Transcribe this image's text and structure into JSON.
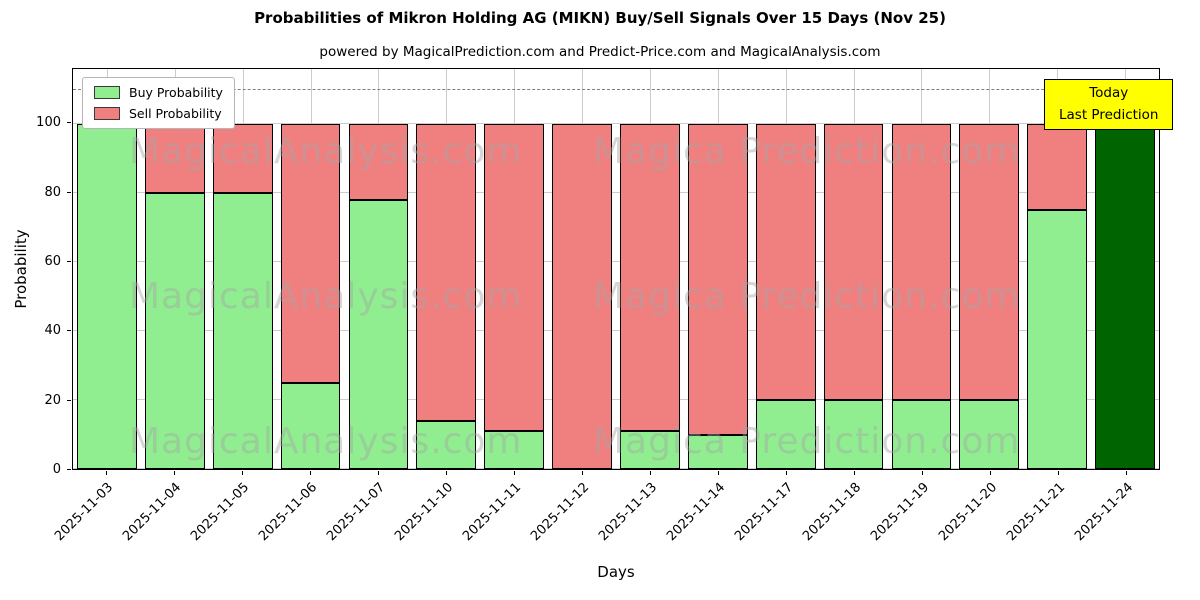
{
  "chart_data": {
    "type": "bar",
    "stacked": true,
    "title": "Probabilities of Mikron Holding AG (MIKN) Buy/Sell Signals Over 15 Days (Nov 25)",
    "subtitle": "powered by MagicalPrediction.com and Predict-Price.com and MagicalAnalysis.com",
    "xlabel": "Days",
    "ylabel": "Probability",
    "ylim": [
      0,
      116
    ],
    "yticks": [
      0,
      20,
      40,
      60,
      80,
      100
    ],
    "dashed_line_y": 110,
    "grid": true,
    "legend_position": "upper left",
    "categories": [
      "2025-11-03",
      "2025-11-04",
      "2025-11-05",
      "2025-11-06",
      "2025-11-07",
      "2025-11-10",
      "2025-11-11",
      "2025-11-12",
      "2025-11-13",
      "2025-11-14",
      "2025-11-17",
      "2025-11-18",
      "2025-11-19",
      "2025-11-20",
      "2025-11-21",
      "2025-11-24"
    ],
    "series": [
      {
        "name": "Buy Probability",
        "color": "#90ee90",
        "values": [
          100,
          80,
          80,
          25,
          78,
          14,
          11,
          0,
          11,
          10,
          20,
          20,
          20,
          20,
          75,
          100
        ]
      },
      {
        "name": "Sell Probability",
        "color": "#f08080",
        "values": [
          0,
          20,
          20,
          75,
          22,
          86,
          89,
          100,
          89,
          90,
          80,
          80,
          80,
          80,
          25,
          0
        ]
      }
    ],
    "last_bar": {
      "index": 15,
      "color": "#006400"
    },
    "annotation": {
      "line1": "Today",
      "line2": "Last Prediction",
      "bg_color": "#ffff00"
    },
    "watermarks": {
      "left": "MagicalAnalysis.com",
      "right": "Magica Prediction.com",
      "rows": 3
    }
  }
}
